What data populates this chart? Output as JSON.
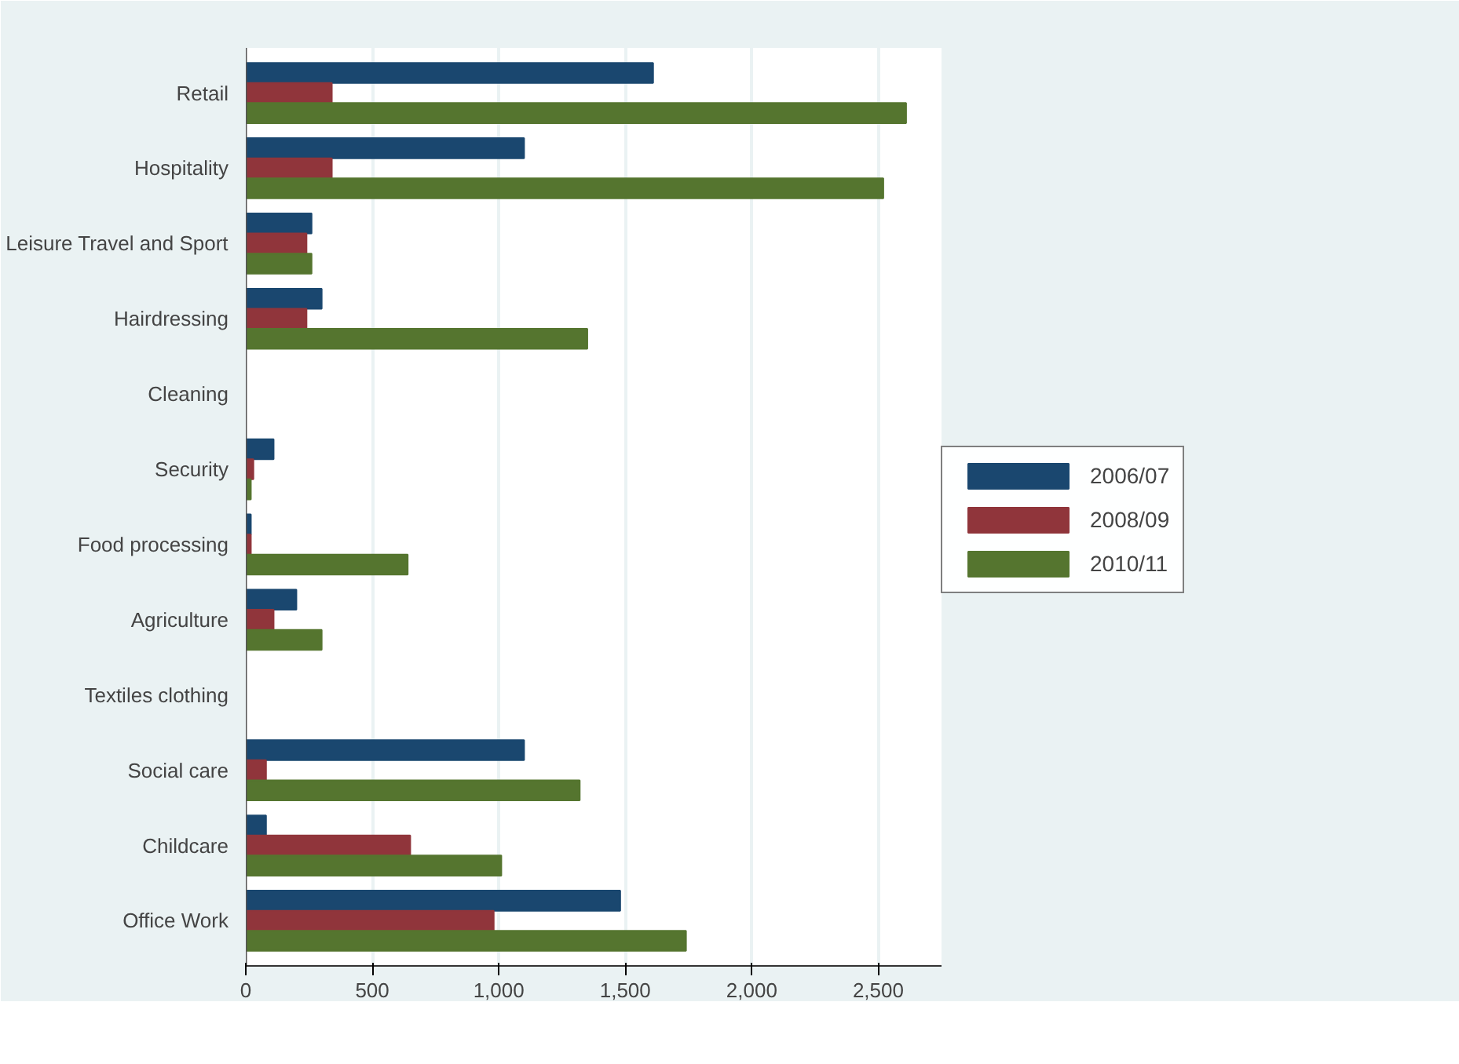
{
  "chart_data": {
    "type": "bar",
    "orientation": "horizontal",
    "categories": [
      "Retail",
      "Hospitality",
      "Leisure Travel and Sport",
      "Hairdressing",
      "Cleaning",
      "Security",
      "Food processing",
      "Agriculture",
      "Textiles clothing",
      "Social care",
      "Childcare",
      "Office Work"
    ],
    "series": [
      {
        "name": "2006/07",
        "color": "#1a476f",
        "values": [
          1610,
          1100,
          260,
          300,
          null,
          110,
          20,
          200,
          null,
          1100,
          80,
          1480
        ]
      },
      {
        "name": "2008/09",
        "color": "#90353b",
        "values": [
          340,
          340,
          240,
          240,
          null,
          30,
          20,
          110,
          null,
          80,
          650,
          980
        ]
      },
      {
        "name": "2010/11",
        "color": "#55752f",
        "values": [
          2610,
          2520,
          260,
          1350,
          null,
          20,
          640,
          300,
          null,
          1320,
          1010,
          1740
        ]
      }
    ],
    "xlim": [
      0,
      2750
    ],
    "xticks": [
      0,
      500,
      {
        "value": 1000,
        "label": "1,000"
      },
      {
        "value": 1500,
        "label": "1,500"
      },
      {
        "value": 2000,
        "label": "2,000"
      },
      {
        "value": 2500,
        "label": "2,500"
      }
    ],
    "grid": "x",
    "legend": "right"
  }
}
